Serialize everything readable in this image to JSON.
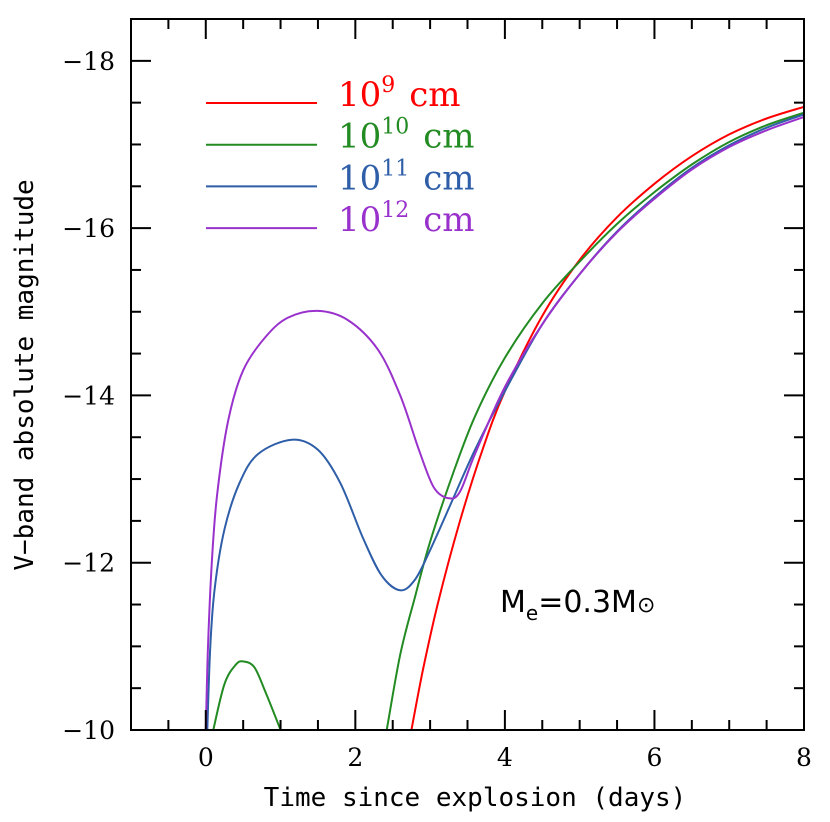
{
  "chart_data": {
    "type": "line",
    "title": "",
    "xlabel": "Time since explosion (days)",
    "ylabel": "V−band absolute magnitude",
    "xlim": [
      -1,
      8
    ],
    "ylim": [
      -10,
      -18.5
    ],
    "y_inverted": true,
    "grid": false,
    "legend_placement": "top-left",
    "x_ticks": [
      0,
      2,
      4,
      6,
      8
    ],
    "x_tick_labels": [
      "0",
      "2",
      "4",
      "6",
      "8"
    ],
    "y_ticks": [
      -18,
      -16,
      -14,
      -12,
      -10
    ],
    "y_tick_labels": [
      "−18",
      "−16",
      "−14",
      "−12",
      "−10"
    ],
    "annotation": {
      "main": "M",
      "sub": "e",
      "rest": "=0.3M",
      "sun": "⊙"
    },
    "series": [
      {
        "name": "10^9 cm",
        "base": "10",
        "exp": "9",
        "unit": "cm",
        "color": "#ff0000",
        "segments": [
          [
            [
              2.75,
              -10
            ],
            [
              2.9,
              -10.7
            ],
            [
              3.1,
              -11.5
            ],
            [
              3.4,
              -12.5
            ],
            [
              3.7,
              -13.35
            ],
            [
              4.0,
              -14.05
            ],
            [
              4.5,
              -14.95
            ],
            [
              5,
              -15.62
            ],
            [
              5.5,
              -16.13
            ],
            [
              6,
              -16.53
            ],
            [
              6.5,
              -16.86
            ],
            [
              7,
              -17.12
            ],
            [
              7.5,
              -17.31
            ],
            [
              8,
              -17.45
            ]
          ]
        ]
      },
      {
        "name": "10^10 cm",
        "base": "10",
        "exp": "10",
        "unit": "cm",
        "color": "#228b22",
        "segments": [
          [
            [
              0.1,
              -10
            ],
            [
              0.25,
              -10.55
            ],
            [
              0.4,
              -10.78
            ],
            [
              0.5,
              -10.82
            ],
            [
              0.65,
              -10.75
            ],
            [
              0.8,
              -10.45
            ],
            [
              1.0,
              -10
            ]
          ],
          [
            [
              2.42,
              -10
            ],
            [
              2.6,
              -10.9
            ],
            [
              2.8,
              -11.6
            ],
            [
              3.0,
              -12.25
            ],
            [
              3.3,
              -13.05
            ],
            [
              3.6,
              -13.75
            ],
            [
              4.0,
              -14.45
            ],
            [
              4.5,
              -15.1
            ],
            [
              5,
              -15.6
            ],
            [
              5.5,
              -16.05
            ],
            [
              6,
              -16.43
            ],
            [
              6.5,
              -16.76
            ],
            [
              7,
              -17.03
            ],
            [
              7.5,
              -17.23
            ],
            [
              8,
              -17.38
            ]
          ]
        ]
      },
      {
        "name": "10^11 cm",
        "base": "10",
        "exp": "11",
        "unit": "cm",
        "color": "#2f5ea8",
        "segments": [
          [
            [
              0.02,
              -10
            ],
            [
              0.06,
              -11
            ],
            [
              0.12,
              -11.7
            ],
            [
              0.25,
              -12.4
            ],
            [
              0.45,
              -12.95
            ],
            [
              0.7,
              -13.3
            ],
            [
              1.15,
              -13.47
            ],
            [
              1.5,
              -13.35
            ],
            [
              1.8,
              -12.95
            ],
            [
              2.1,
              -12.3
            ],
            [
              2.35,
              -11.85
            ],
            [
              2.6,
              -11.67
            ],
            [
              2.8,
              -11.8
            ],
            [
              3.0,
              -12.15
            ],
            [
              3.3,
              -12.75
            ],
            [
              3.6,
              -13.35
            ],
            [
              4.0,
              -14.05
            ],
            [
              4.5,
              -14.85
            ],
            [
              5,
              -15.45
            ],
            [
              5.5,
              -15.96
            ],
            [
              6,
              -16.37
            ],
            [
              6.5,
              -16.72
            ],
            [
              7,
              -16.99
            ],
            [
              7.5,
              -17.2
            ],
            [
              8,
              -17.36
            ]
          ]
        ]
      },
      {
        "name": "10^12 cm",
        "base": "10",
        "exp": "12",
        "unit": "cm",
        "color": "#9932cc",
        "segments": [
          [
            [
              0.0,
              -10
            ],
            [
              0.03,
              -11
            ],
            [
              0.08,
              -12
            ],
            [
              0.15,
              -12.8
            ],
            [
              0.3,
              -13.7
            ],
            [
              0.5,
              -14.3
            ],
            [
              0.8,
              -14.7
            ],
            [
              1.1,
              -14.93
            ],
            [
              1.5,
              -15.01
            ],
            [
              1.9,
              -14.9
            ],
            [
              2.3,
              -14.55
            ],
            [
              2.6,
              -14.0
            ],
            [
              2.85,
              -13.35
            ],
            [
              3.05,
              -12.9
            ],
            [
              3.25,
              -12.77
            ],
            [
              3.4,
              -12.85
            ],
            [
              3.6,
              -13.3
            ],
            [
              4.0,
              -14.1
            ],
            [
              4.5,
              -14.85
            ],
            [
              5,
              -15.45
            ],
            [
              5.5,
              -15.95
            ],
            [
              6,
              -16.35
            ],
            [
              6.5,
              -16.7
            ],
            [
              7,
              -16.97
            ],
            [
              7.5,
              -17.17
            ],
            [
              8,
              -17.33
            ]
          ]
        ]
      }
    ]
  }
}
